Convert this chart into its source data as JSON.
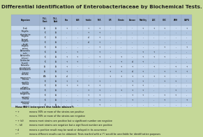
{
  "title": "Differential Identification of Enterobacteriaceae by Biochemical Tests.",
  "background_color": "#c5d898",
  "col_header_bg": "#a0b4d0",
  "row_even_bg": "#c8daf0",
  "row_odd_bg": "#b0c6e0",
  "organism_col_bg_even": "#c0d4e8",
  "organism_col_bg_odd": "#a8bcd4",
  "col_headers": [
    "T.S.I.\nSlant",
    "T.S.I.\nButt",
    "Gas",
    "H2S",
    "Indole",
    "M.R.",
    "V.P.",
    "Citrate",
    "Urease",
    "Motility",
    "LDC",
    "ODC",
    "ADH",
    "ONPG"
  ],
  "rows": [
    [
      "E.coli",
      "A",
      "A",
      "+",
      "-",
      "+",
      "+",
      "-",
      "-",
      "-",
      "+",
      "+",
      "+",
      "-",
      "+"
    ],
    [
      "Shigella\ndysenteriae",
      "K",
      "A",
      "-",
      "-",
      "+",
      "+",
      "-",
      "-",
      "-",
      "-",
      "-",
      "-",
      "-",
      "-"
    ],
    [
      "Shigella\nflexneri",
      "K",
      "A",
      "-",
      "-",
      "d",
      "+",
      "-",
      "-",
      "-",
      "-",
      "-",
      "-",
      "-",
      "-"
    ],
    [
      "Shigella\nboydii",
      "K",
      "A",
      "-",
      "-",
      "d",
      "+",
      "-",
      "-",
      "-",
      "-",
      "-",
      "-",
      "-",
      "-"
    ],
    [
      "Shigella\nsonnei",
      "K",
      "A",
      "-",
      "-",
      "-",
      "+",
      "-",
      "-",
      "-",
      "-",
      "-",
      "+",
      "-",
      "+"
    ],
    [
      "Salmonella\ntyphi",
      "K",
      "A",
      "-",
      "+",
      "-",
      "+",
      "-",
      "-",
      "-",
      "+",
      "+",
      "-",
      "-",
      "-"
    ],
    [
      "Salmonella\n(others)",
      "K",
      "A",
      "+",
      "+",
      "-",
      "+",
      "-",
      "+",
      "-",
      "+",
      "+",
      "+",
      "-",
      "-"
    ],
    [
      "Citrobacter\nfreundii",
      "K",
      "A",
      "+",
      "+",
      "-",
      "+",
      "-",
      "+",
      "d",
      "+",
      "-",
      "-",
      "-",
      "-"
    ],
    [
      "Klebsiella\npneumoniae",
      "A",
      "A",
      "+",
      "-",
      "-",
      "-",
      "+",
      "+",
      "+",
      "-",
      "+",
      "-",
      "+",
      "+"
    ],
    [
      "Enterobacter\ncloacae",
      "A",
      "A",
      "+",
      "-",
      "-",
      "-",
      "+",
      "+",
      "d",
      "+",
      "-",
      "+",
      "+",
      "+"
    ],
    [
      "Serratia\nmarcescens",
      "K/A",
      "A",
      "d",
      "-",
      "-",
      "-",
      "+",
      "+",
      "+",
      "+",
      "+",
      "+",
      "-",
      "-"
    ],
    [
      "Proteus\nmirabilis",
      "K",
      "A",
      "+",
      "+",
      "-",
      "+",
      "-",
      "-",
      "+",
      "+",
      "-",
      "+",
      "+",
      "-"
    ],
    [
      "Proteus\nvulgaris",
      "K",
      "A",
      "+",
      "+",
      "+",
      "+",
      "-",
      "-",
      "+",
      "+",
      "-",
      "-",
      "-",
      "-"
    ],
    [
      "Providencia\nstuartii",
      "K",
      "A",
      "-",
      "-",
      "+",
      "+",
      "-",
      "+",
      "+",
      "+",
      "-",
      "-",
      "+",
      "-"
    ],
    [
      "Morganella\nmorganii",
      "K",
      "A",
      "-",
      "-",
      "+",
      "+",
      "-",
      "-",
      "+",
      "+",
      "-",
      "+",
      "+",
      "-"
    ],
    [
      "Yersinia\nenterocol.",
      "K",
      "A",
      "-",
      "-",
      "+",
      "+",
      "-",
      "-",
      "+",
      "-",
      "-",
      "+",
      "-",
      "+"
    ],
    [
      "Yersinia\npestis",
      "K",
      "A",
      "-",
      "-",
      "-",
      "+",
      "-",
      "-",
      "-",
      "-",
      "-",
      "-",
      "-",
      "-"
    ]
  ],
  "footer_title": "How do I interpret the table above?:",
  "footer_items": [
    [
      "+",
      "means 90% or more of the strains are positive"
    ],
    [
      "-",
      "means 90% or more of the strains are negative"
    ],
    [
      "+ (d)",
      "means most strains are positive but a significant number are negative"
    ],
    [
      "- (d)",
      "means most strains are negative but a significant number are positive"
    ],
    [
      "d",
      "means a positive result may be weak or delayed in its occurrence"
    ],
    [
      "*",
      "means different results can be obtained. Tests marked with a (*) would be unreliable for identification purposes"
    ]
  ]
}
